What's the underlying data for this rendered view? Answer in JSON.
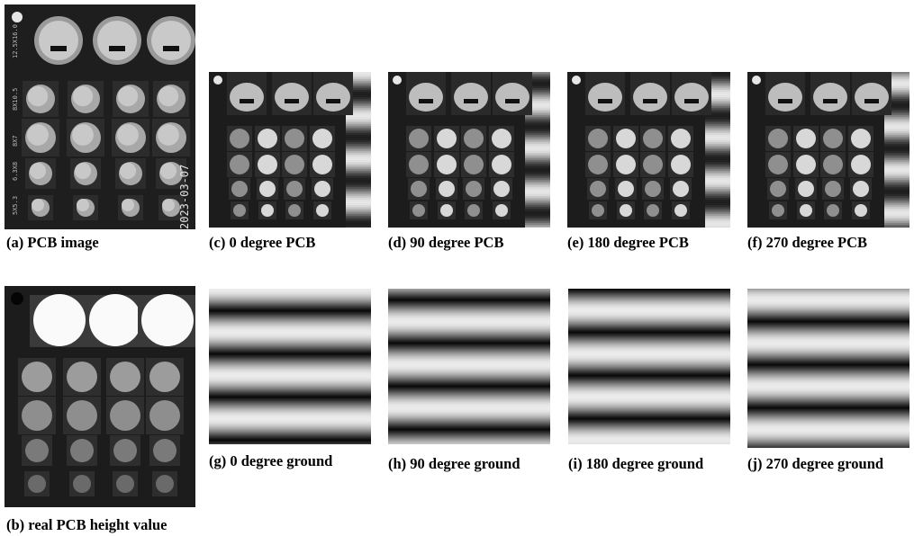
{
  "figure": {
    "captions": {
      "a": "(a) PCB image",
      "b": "(b) real PCB height value",
      "c": "(c) 0 degree PCB",
      "d": "(d) 90 degree PCB",
      "e": "(e) 180 degree PCB",
      "f": "(f) 270 degree PCB",
      "g": "(g) 0 degree ground",
      "h": "(h) 90 degree ground",
      "i": "(i) 180 degree ground",
      "j": "(j) 270 degree ground"
    },
    "pcb_text": {
      "date": "2023-03-07",
      "label_1": "12.5X16.0",
      "label_2": "8X10.5",
      "label_3": "8X7",
      "label_4": "6.3X8",
      "label_5": "5X5.3"
    },
    "colors": {
      "board": "#1f1f1f",
      "capacitor_light": "#d8d8d8",
      "stripe_dark": "#101010",
      "stripe_light": "#e6e6e6"
    }
  }
}
